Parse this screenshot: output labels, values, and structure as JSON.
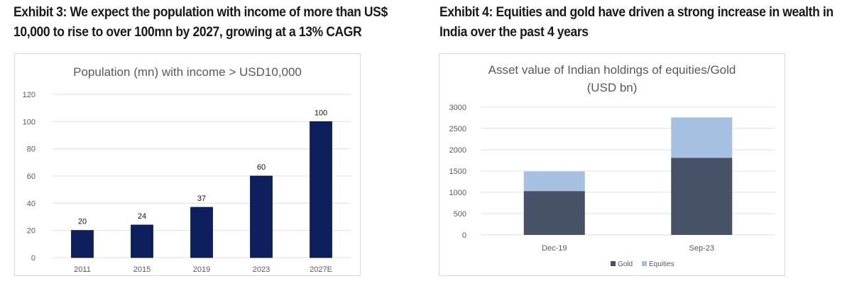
{
  "exhibits": {
    "left_title": "Exhibit 3: We expect the population with income of more than US$ 10,000 to rise to over 100mn by 2027, growing at a 13% CAGR",
    "right_title": "Exhibit 4: Equities and gold have driven a strong increase in wealth in India over the past 4 years"
  },
  "colors": {
    "bar_navy": "#0d1f5c",
    "gold": "#475266",
    "equities": "#a5c0e1",
    "grid": "#e0e0e0",
    "axis_text": "#595959",
    "title_text": "#595959"
  },
  "chart_data": [
    {
      "type": "bar",
      "title": "Population (mn) with income > USD10,000",
      "categories": [
        "2011",
        "2015",
        "2019",
        "2023",
        "2027E"
      ],
      "values": [
        20,
        24,
        37,
        60,
        100
      ],
      "data_labels": [
        "20",
        "24",
        "37",
        "60",
        "100"
      ],
      "xlabel": "",
      "ylabel": "",
      "ylim": [
        0,
        120
      ],
      "yticks": [
        0,
        20,
        40,
        60,
        80,
        100,
        120
      ],
      "ytick_labels": [
        "0",
        "20",
        "40",
        "60",
        "80",
        "100",
        "120"
      ],
      "grid": true,
      "legend": "none"
    },
    {
      "type": "bar",
      "stacked": true,
      "title": "Asset value of Indian holdings of equities/Gold",
      "subtitle": "(USD bn)",
      "categories": [
        "Dec-19",
        "Sep-23"
      ],
      "series": [
        {
          "name": "Gold",
          "values": [
            1030,
            1810
          ]
        },
        {
          "name": "Equities",
          "values": [
            460,
            950
          ]
        }
      ],
      "xlabel": "",
      "ylabel": "",
      "ylim": [
        0,
        3000
      ],
      "yticks": [
        0,
        500,
        1000,
        1500,
        2000,
        2500,
        3000
      ],
      "ytick_labels": [
        "0",
        "500",
        "1000",
        "1500",
        "2000",
        "2500",
        "3000"
      ],
      "grid": true,
      "legend": "bottom"
    }
  ]
}
